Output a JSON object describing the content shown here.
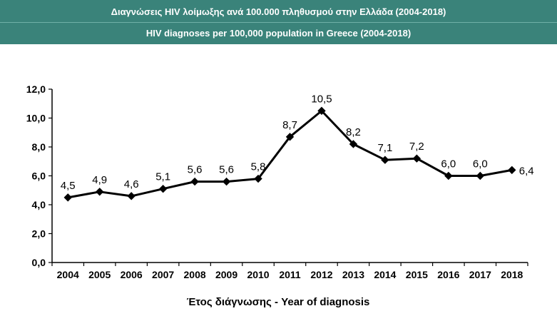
{
  "header": {
    "title_greek": "Διαγνώσεις HIV λοίμωξης ανά 100.000 πληθυσμού στην Ελλάδα (2004-2018)",
    "title_english": "HIV diagnoses per 100,000 population in Greece (2004-2018)"
  },
  "colors": {
    "banner": "#3a837a",
    "line": "#000000",
    "marker": "#000000"
  },
  "chart_data": {
    "type": "line",
    "title": "HIV diagnoses per 100,000 population in Greece (2004-2018)",
    "categories": [
      "2004",
      "2005",
      "2006",
      "2007",
      "2008",
      "2009",
      "2010",
      "2011",
      "2012",
      "2013",
      "2014",
      "2015",
      "2016",
      "2017",
      "2018"
    ],
    "series": [
      {
        "values": [
          4.5,
          4.9,
          4.6,
          5.1,
          5.6,
          5.6,
          5.8,
          8.7,
          10.5,
          8.2,
          7.1,
          7.2,
          6.0,
          6.0,
          6.4
        ],
        "data_labels": [
          "4,5",
          "4,9",
          "4,6",
          "5,1",
          "5,6",
          "5,6",
          "5,8",
          "8,7",
          "10,5",
          "8,2",
          "7,1",
          "7,2",
          "6,0",
          "6,0",
          "6,4"
        ],
        "marker": "diamond"
      }
    ],
    "xlabel": "Έτος διάγνωσης - Year of diagnosis",
    "ylabel": "",
    "ylim": [
      0,
      12
    ],
    "yticks": [
      0,
      2,
      4,
      6,
      8,
      10,
      12
    ],
    "ytick_labels": [
      "0,0",
      "2,0",
      "4,0",
      "6,0",
      "8,0",
      "10,0",
      "12,0"
    ],
    "grid": false,
    "legend": "none"
  }
}
